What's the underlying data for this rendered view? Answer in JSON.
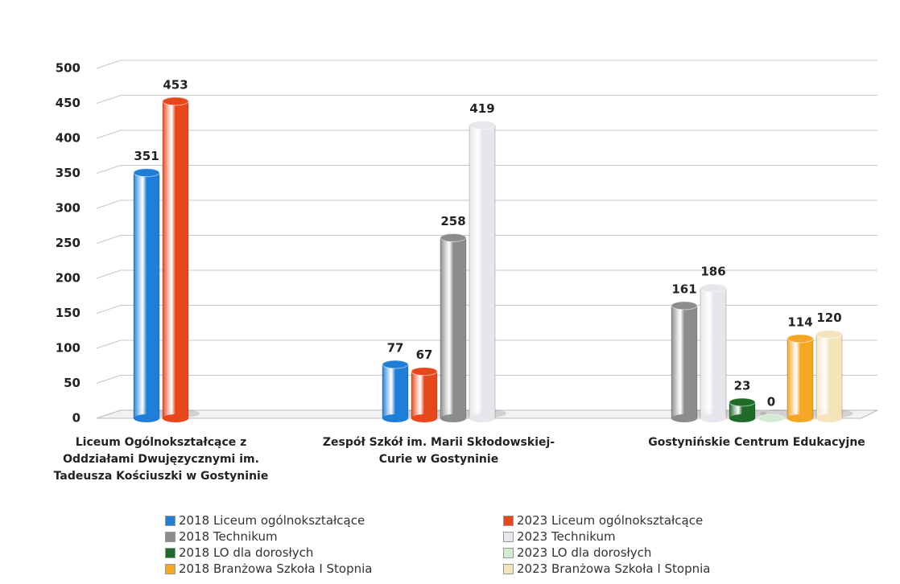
{
  "chart_data": {
    "type": "bar",
    "categories": [
      "Liceum Ogólnokształcące z Oddziałami Dwujęzycznymi im. Tadeusza Kościuszki w Gostyninie",
      "Zespół Szkół im. Marii Skłodowskiej-Curie w Gostyninie",
      "Gostynińskie Centrum Edukacyjne"
    ],
    "series": [
      {
        "name": "2018 Liceum ogólnokształcące",
        "color": "#1f7fd8",
        "values": [
          351,
          77,
          null
        ]
      },
      {
        "name": "2023 Liceum ogólnokształcące",
        "color": "#e8471c",
        "values": [
          453,
          67,
          null
        ]
      },
      {
        "name": "2018 Technikum",
        "color": "#8c8c8c",
        "values": [
          null,
          258,
          161
        ]
      },
      {
        "name": "2023 Technikum",
        "color": "#e6e6ec",
        "values": [
          null,
          419,
          186
        ]
      },
      {
        "name": "2018 LO dla dorosłych",
        "color": "#1e6b2a",
        "values": [
          null,
          null,
          23
        ]
      },
      {
        "name": "2023 LO dla dorosłych",
        "color": "#d3ead3",
        "values": [
          null,
          null,
          0
        ]
      },
      {
        "name": "2018 Branżowa Szkoła I Stopnia",
        "color": "#f5a623",
        "values": [
          null,
          null,
          114
        ]
      },
      {
        "name": "2023 Branżowa Szkoła I Stopnia",
        "color": "#f3e4bc",
        "values": [
          null,
          null,
          120
        ]
      }
    ],
    "ylim": [
      0,
      500
    ],
    "yticks": [
      0,
      50,
      100,
      150,
      200,
      250,
      300,
      350,
      400,
      450,
      500
    ],
    "grid": true
  }
}
